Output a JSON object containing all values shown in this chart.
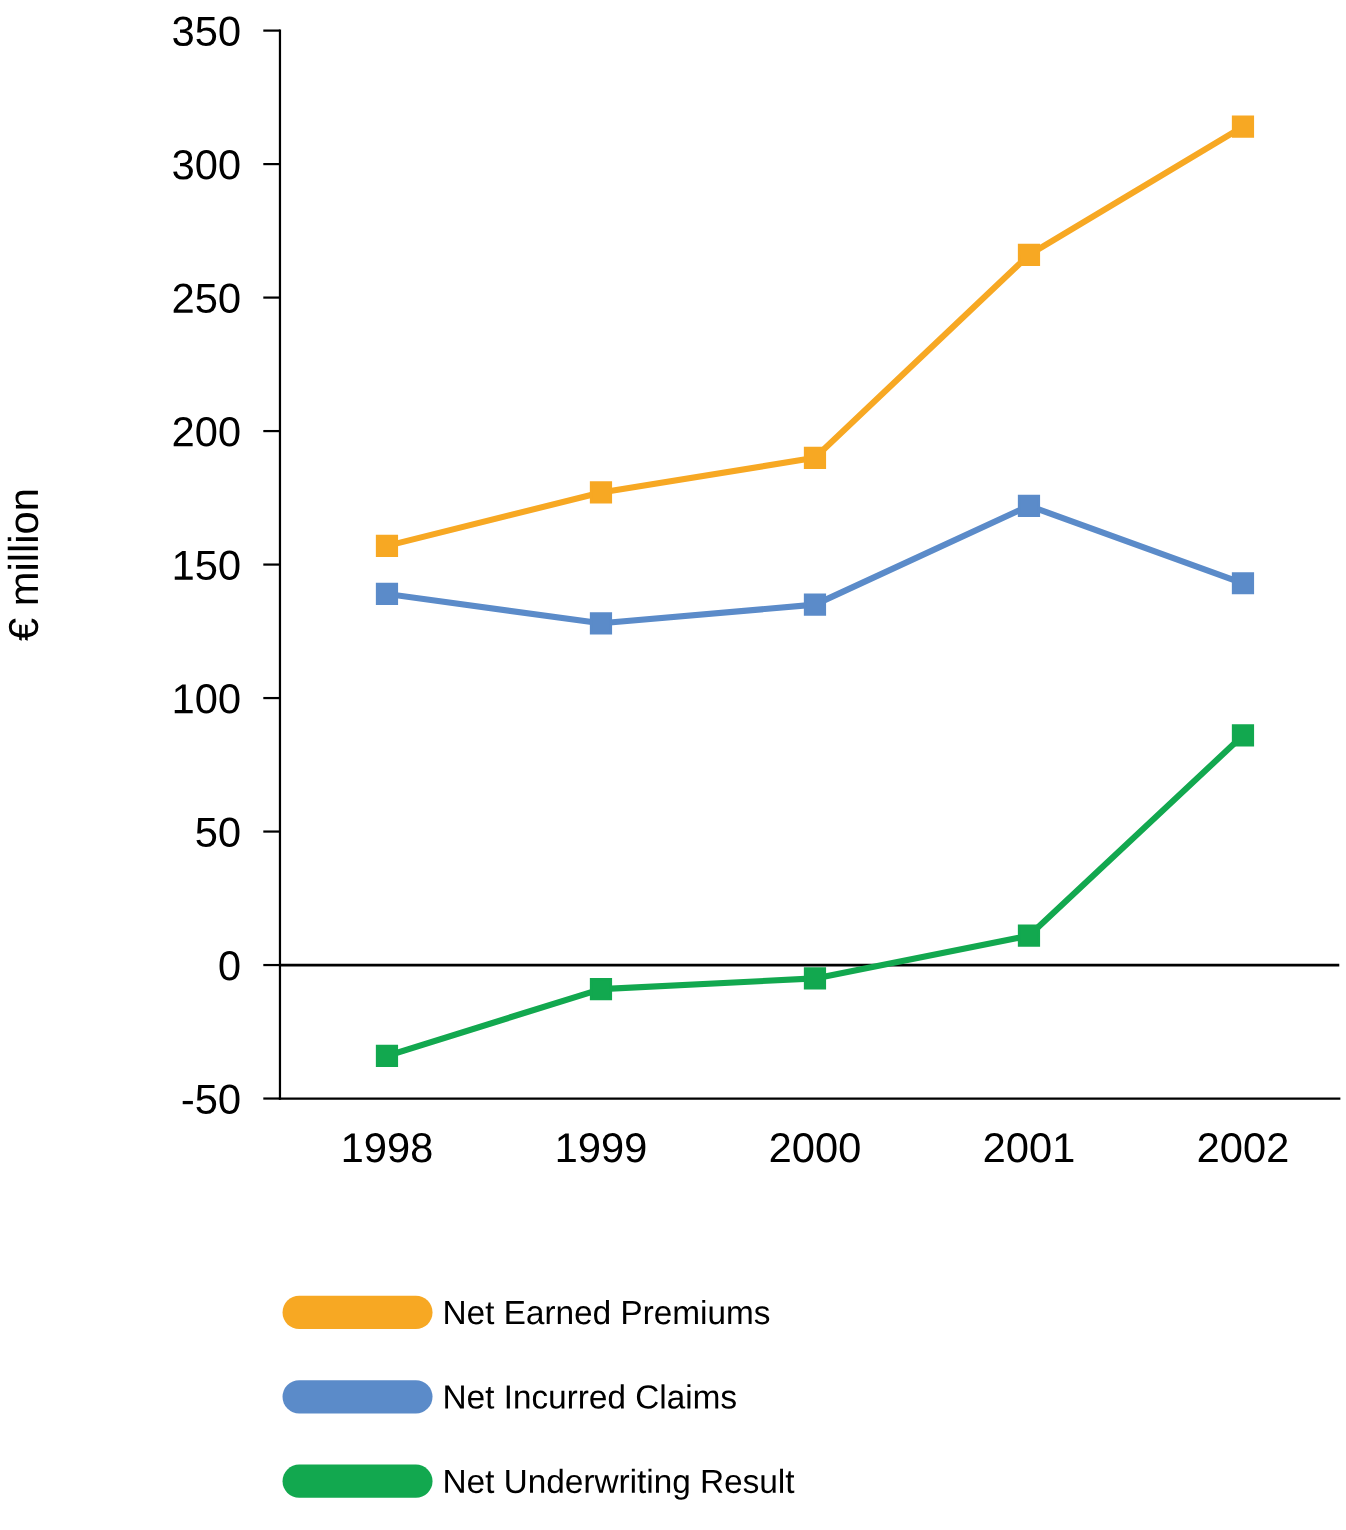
{
  "chart_data": {
    "type": "line",
    "ylabel": "€ million",
    "categories": [
      "1998",
      "1999",
      "2000",
      "2001",
      "2002"
    ],
    "series": [
      {
        "name": "Net Earned Premiums",
        "color": "#f7a823",
        "values": [
          157,
          177,
          190,
          266,
          314
        ]
      },
      {
        "name": "Net Incurred Claims",
        "color": "#5b8bc9",
        "values": [
          139,
          128,
          135,
          172,
          143
        ]
      },
      {
        "name": "Net Underwriting Result",
        "color": "#12a84f",
        "values": [
          -34,
          -9,
          -5,
          11,
          86
        ]
      }
    ],
    "ylim": [
      -50,
      350
    ],
    "yticks": [
      -50,
      0,
      50,
      100,
      150,
      200,
      250,
      300,
      350
    ],
    "ref_lines": [
      {
        "axis": "y",
        "value": 0,
        "color": "#000000"
      }
    ],
    "marker": "square",
    "line_style": "solid",
    "grid": false,
    "legend": "bottom"
  }
}
